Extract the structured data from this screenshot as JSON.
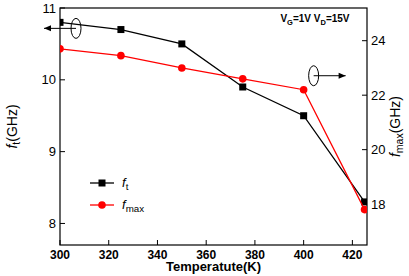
{
  "chart_data": {
    "type": "line",
    "x_label": "Temperatute(K)",
    "y_label": "ft(GHz)",
    "y2_label": "fmax(GHz)",
    "annotations": [
      "VG=1V VD=15V"
    ],
    "x": [
      300,
      325,
      350,
      375,
      400,
      425
    ],
    "xlim": [
      300,
      426
    ],
    "xticks": [
      300,
      320,
      340,
      360,
      380,
      400,
      420
    ],
    "ylim": [
      7.7,
      11
    ],
    "yticks": [
      8,
      9,
      10,
      11
    ],
    "y2lim": [
      16.5,
      25.2
    ],
    "y2ticks": [
      18,
      20,
      22,
      24
    ],
    "legend": "lower left",
    "series": [
      {
        "name": "ft",
        "color": "#000000",
        "marker": "square",
        "values": [
          10.8,
          10.7,
          10.5,
          9.9,
          9.5,
          8.3
        ]
      },
      {
        "name": "fmax",
        "color": "#ff0000",
        "marker": "circle",
        "axis": "y2",
        "values": [
          23.7,
          23.45,
          23.0,
          22.6,
          22.2,
          17.8
        ]
      }
    ]
  }
}
